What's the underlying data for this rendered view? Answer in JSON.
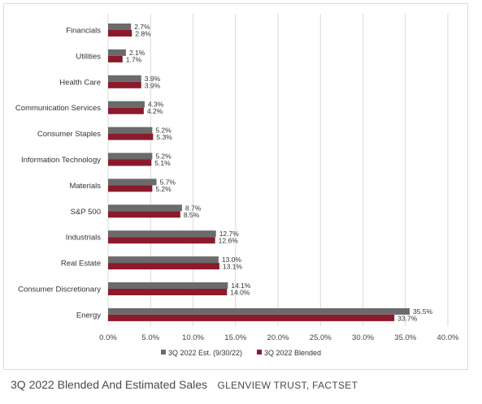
{
  "caption": {
    "title": "3Q 2022 Blended And Estimated Sales",
    "source": "GLENVIEW TRUST, FACTSET"
  },
  "colors": {
    "series_estimate": "#6b6b6b",
    "series_blended": "#8b1a2c",
    "grid": "#d9d9d9"
  },
  "chart_data": {
    "type": "bar",
    "orientation": "horizontal",
    "title": "",
    "xlabel": "",
    "ylabel": "",
    "xlim": [
      0,
      40
    ],
    "x_ticks": [
      "0.0%",
      "5.0%",
      "10.0%",
      "15.0%",
      "20.0%",
      "25.0%",
      "30.0%",
      "35.0%",
      "40.0%"
    ],
    "grid": "vertical",
    "legend_position": "bottom",
    "categories": [
      "Financials",
      "Utilities",
      "Health Care",
      "Communication Services",
      "Consumer Staples",
      "Information Technology",
      "Materials",
      "S&P 500",
      "Industrials",
      "Real Estate",
      "Consumer Discretionary",
      "Energy"
    ],
    "series": [
      {
        "name": "3Q 2022 Est. (9/30/22)",
        "color": "#6b6b6b",
        "values": [
          2.7,
          2.1,
          3.9,
          4.3,
          5.2,
          5.2,
          5.7,
          8.7,
          12.7,
          13.0,
          14.1,
          35.5
        ],
        "labels": [
          "2.7%",
          "2.1%",
          "3.9%",
          "4.3%",
          "5.2%",
          "5.2%",
          "5.7%",
          "8.7%",
          "12.7%",
          "13.0%",
          "14.1%",
          "35.5%"
        ]
      },
      {
        "name": "3Q 2022 Blended",
        "color": "#8b1a2c",
        "values": [
          2.8,
          1.7,
          3.9,
          4.2,
          5.3,
          5.1,
          5.2,
          8.5,
          12.6,
          13.1,
          14.0,
          33.7
        ],
        "labels": [
          "2.8%",
          "1.7%",
          "3.9%",
          "4.2%",
          "5.3%",
          "5.1%",
          "5.2%",
          "8.5%",
          "12.6%",
          "13.1%",
          "14.0%",
          "33.7%"
        ]
      }
    ]
  }
}
